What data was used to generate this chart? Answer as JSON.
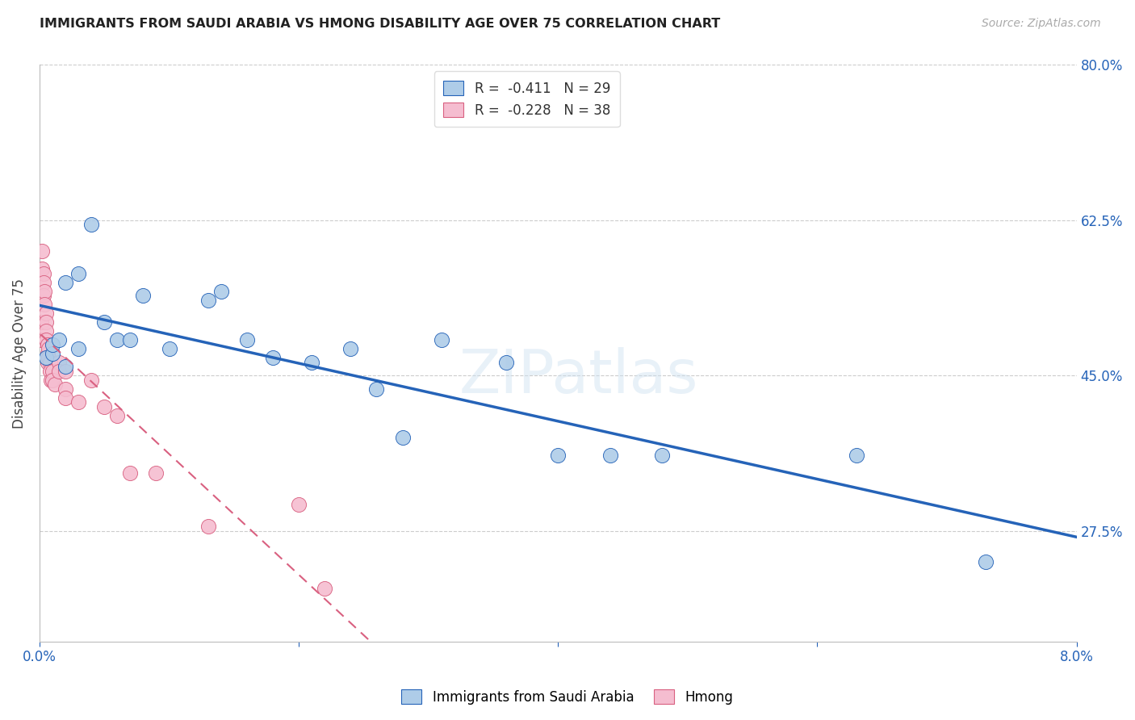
{
  "title": "IMMIGRANTS FROM SAUDI ARABIA VS HMONG DISABILITY AGE OVER 75 CORRELATION CHART",
  "source": "Source: ZipAtlas.com",
  "ylabel": "Disability Age Over 75",
  "xlim": [
    0.0,
    0.08
  ],
  "ylim": [
    0.15,
    0.8
  ],
  "yticks": [
    0.275,
    0.45,
    0.625,
    0.8
  ],
  "ytick_labels": [
    "27.5%",
    "45.0%",
    "62.5%",
    "80.0%"
  ],
  "background_color": "#ffffff",
  "saudi_R": "-0.411",
  "saudi_N": "29",
  "hmong_R": "-0.228",
  "hmong_N": "38",
  "saudi_color": "#aecce8",
  "hmong_color": "#f5bdd0",
  "saudi_line_color": "#2563b8",
  "hmong_line_color": "#d96080",
  "saudi_x": [
    0.0005,
    0.001,
    0.001,
    0.0015,
    0.002,
    0.002,
    0.003,
    0.003,
    0.004,
    0.005,
    0.006,
    0.007,
    0.008,
    0.01,
    0.013,
    0.014,
    0.016,
    0.018,
    0.021,
    0.024,
    0.026,
    0.028,
    0.031,
    0.036,
    0.04,
    0.044,
    0.048,
    0.063,
    0.073
  ],
  "saudi_y": [
    0.47,
    0.475,
    0.485,
    0.49,
    0.46,
    0.555,
    0.48,
    0.565,
    0.62,
    0.51,
    0.49,
    0.49,
    0.54,
    0.48,
    0.535,
    0.545,
    0.49,
    0.47,
    0.465,
    0.48,
    0.435,
    0.38,
    0.49,
    0.465,
    0.36,
    0.36,
    0.36,
    0.36,
    0.24
  ],
  "hmong_x": [
    0.0001,
    0.0001,
    0.0002,
    0.0002,
    0.0003,
    0.0003,
    0.0003,
    0.0004,
    0.0004,
    0.0005,
    0.0005,
    0.0005,
    0.0005,
    0.0006,
    0.0006,
    0.0006,
    0.0007,
    0.0007,
    0.0008,
    0.0008,
    0.0009,
    0.001,
    0.001,
    0.0012,
    0.0015,
    0.0015,
    0.002,
    0.002,
    0.002,
    0.003,
    0.004,
    0.005,
    0.006,
    0.007,
    0.009,
    0.013,
    0.02,
    0.022
  ],
  "hmong_y": [
    0.51,
    0.49,
    0.59,
    0.57,
    0.565,
    0.555,
    0.54,
    0.545,
    0.53,
    0.52,
    0.51,
    0.5,
    0.49,
    0.485,
    0.475,
    0.465,
    0.48,
    0.47,
    0.465,
    0.455,
    0.445,
    0.455,
    0.445,
    0.44,
    0.465,
    0.455,
    0.435,
    0.425,
    0.455,
    0.42,
    0.445,
    0.415,
    0.405,
    0.34,
    0.34,
    0.28,
    0.305,
    0.21
  ]
}
